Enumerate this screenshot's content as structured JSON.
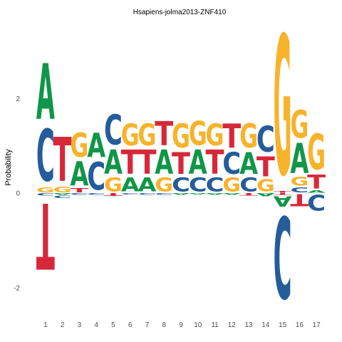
{
  "chart_data": {
    "type": "sequence-logo",
    "title": "Hsapiens-jolma2013-ZNF410",
    "xlabel": "",
    "ylabel": "Probability",
    "x_ticks": [
      "1",
      "2",
      "3",
      "4",
      "5",
      "6",
      "7",
      "8",
      "9",
      "10",
      "11",
      "12",
      "13",
      "14",
      "15",
      "16",
      "17"
    ],
    "y_ticks": [
      -2,
      0,
      2
    ],
    "ylim": [
      -2.55,
      3.55
    ],
    "grid": false,
    "legend": "none",
    "colors": {
      "A": "#109648",
      "C": "#255c99",
      "G": "#f7b32b",
      "T": "#d62839"
    },
    "positions": [
      {
        "pos": 1,
        "positive": [
          [
            "G",
            0.13
          ],
          [
            "C",
            1.3
          ],
          [
            "A",
            1.4
          ]
        ],
        "negative": [
          [
            "C",
            0.06
          ],
          [
            "T",
            1.65
          ]
        ]
      },
      {
        "pos": 2,
        "positive": [
          [
            "G",
            0.14
          ],
          [
            "T",
            1.1
          ]
        ],
        "negative": [
          [
            "A",
            0.05
          ],
          [
            "C",
            0.06
          ]
        ]
      },
      {
        "pos": 3,
        "positive": [
          [
            "T",
            0.1
          ],
          [
            "A",
            0.6
          ],
          [
            "G",
            0.6
          ]
        ],
        "negative": [
          [
            "C",
            0.05
          ]
        ]
      },
      {
        "pos": 4,
        "positive": [
          [
            "C",
            0.7
          ],
          [
            "A",
            0.6
          ]
        ],
        "negative": [
          [
            "C",
            0.05
          ]
        ]
      },
      {
        "pos": 5,
        "positive": [
          [
            "G",
            0.35
          ],
          [
            "A",
            0.6
          ],
          [
            "C",
            0.75
          ]
        ],
        "negative": [
          [
            "T",
            0.07
          ]
        ]
      },
      {
        "pos": 6,
        "positive": [
          [
            "A",
            0.35
          ],
          [
            "T",
            0.6
          ],
          [
            "G",
            0.55
          ]
        ],
        "negative": [
          [
            "C",
            0.03
          ]
        ]
      },
      {
        "pos": 7,
        "positive": [
          [
            "A",
            0.35
          ],
          [
            "T",
            0.6
          ],
          [
            "G",
            0.55
          ]
        ],
        "negative": [
          [
            "C",
            0.04
          ]
        ]
      },
      {
        "pos": 8,
        "positive": [
          [
            "G",
            0.35
          ],
          [
            "A",
            0.6
          ],
          [
            "T",
            0.6
          ]
        ],
        "negative": [
          [
            "C",
            0.05
          ]
        ]
      },
      {
        "pos": 9,
        "positive": [
          [
            "C",
            0.35
          ],
          [
            "T",
            0.55
          ],
          [
            "G",
            0.6
          ]
        ],
        "negative": [
          [
            "A",
            0.04
          ]
        ]
      },
      {
        "pos": 10,
        "positive": [
          [
            "C",
            0.35
          ],
          [
            "A",
            0.6
          ],
          [
            "G",
            0.6
          ]
        ],
        "negative": [
          [
            "A",
            0.03
          ]
        ]
      },
      {
        "pos": 11,
        "positive": [
          [
            "C",
            0.35
          ],
          [
            "T",
            0.6
          ],
          [
            "G",
            0.55
          ]
        ],
        "negative": [
          [
            "A",
            0.04
          ]
        ]
      },
      {
        "pos": 12,
        "positive": [
          [
            "G",
            0.35
          ],
          [
            "C",
            0.55
          ],
          [
            "T",
            0.6
          ]
        ],
        "negative": [
          [
            "A",
            0.05
          ]
        ]
      },
      {
        "pos": 13,
        "positive": [
          [
            "C",
            0.35
          ],
          [
            "A",
            0.55
          ],
          [
            "G",
            0.6
          ]
        ],
        "negative": [
          [
            "T",
            0.06
          ]
        ]
      },
      {
        "pos": 14,
        "positive": [
          [
            "G",
            0.3
          ],
          [
            "T",
            0.5
          ],
          [
            "C",
            0.65
          ]
        ],
        "negative": [
          [
            "A",
            0.08
          ]
        ]
      },
      {
        "pos": 15,
        "positive": [
          [
            "T",
            0.05
          ],
          [
            "G",
            3.5
          ]
        ],
        "negative": [
          [
            "T",
            0.05
          ],
          [
            "A",
            0.25
          ],
          [
            "C",
            2.05
          ]
        ]
      },
      {
        "pos": 16,
        "positive": [
          [
            "C",
            0.13
          ],
          [
            "G",
            0.22
          ],
          [
            "A",
            0.75
          ],
          [
            "G",
            0.7
          ]
        ],
        "negative": [
          [
            "T",
            0.3
          ]
        ]
      },
      {
        "pos": 17,
        "positive": [
          [
            "A",
            0.06
          ],
          [
            "T",
            0.35
          ],
          [
            "G",
            0.9
          ]
        ],
        "negative": [
          [
            "C",
            0.4
          ]
        ]
      }
    ]
  }
}
